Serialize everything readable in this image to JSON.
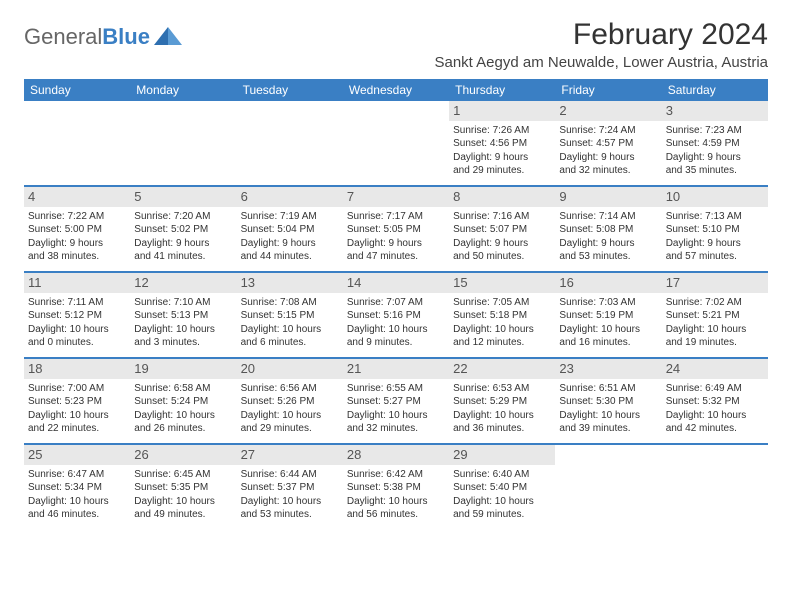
{
  "brand": {
    "general": "General",
    "blue": "Blue"
  },
  "title": "February 2024",
  "location": "Sankt Aegyd am Neuwalde, Lower Austria, Austria",
  "colors": {
    "accent": "#3a7fc4",
    "header_bg": "#3a7fc4",
    "header_text": "#ffffff",
    "daynum_bg": "#e8e8e8",
    "text": "#333333",
    "page_bg": "#ffffff"
  },
  "dayHeaders": [
    "Sunday",
    "Monday",
    "Tuesday",
    "Wednesday",
    "Thursday",
    "Friday",
    "Saturday"
  ],
  "weeks": [
    [
      null,
      null,
      null,
      null,
      {
        "n": "1",
        "sr": "7:26 AM",
        "ss": "4:56 PM",
        "d1": "Daylight: 9 hours",
        "d2": "and 29 minutes."
      },
      {
        "n": "2",
        "sr": "7:24 AM",
        "ss": "4:57 PM",
        "d1": "Daylight: 9 hours",
        "d2": "and 32 minutes."
      },
      {
        "n": "3",
        "sr": "7:23 AM",
        "ss": "4:59 PM",
        "d1": "Daylight: 9 hours",
        "d2": "and 35 minutes."
      }
    ],
    [
      {
        "n": "4",
        "sr": "7:22 AM",
        "ss": "5:00 PM",
        "d1": "Daylight: 9 hours",
        "d2": "and 38 minutes."
      },
      {
        "n": "5",
        "sr": "7:20 AM",
        "ss": "5:02 PM",
        "d1": "Daylight: 9 hours",
        "d2": "and 41 minutes."
      },
      {
        "n": "6",
        "sr": "7:19 AM",
        "ss": "5:04 PM",
        "d1": "Daylight: 9 hours",
        "d2": "and 44 minutes."
      },
      {
        "n": "7",
        "sr": "7:17 AM",
        "ss": "5:05 PM",
        "d1": "Daylight: 9 hours",
        "d2": "and 47 minutes."
      },
      {
        "n": "8",
        "sr": "7:16 AM",
        "ss": "5:07 PM",
        "d1": "Daylight: 9 hours",
        "d2": "and 50 minutes."
      },
      {
        "n": "9",
        "sr": "7:14 AM",
        "ss": "5:08 PM",
        "d1": "Daylight: 9 hours",
        "d2": "and 53 minutes."
      },
      {
        "n": "10",
        "sr": "7:13 AM",
        "ss": "5:10 PM",
        "d1": "Daylight: 9 hours",
        "d2": "and 57 minutes."
      }
    ],
    [
      {
        "n": "11",
        "sr": "7:11 AM",
        "ss": "5:12 PM",
        "d1": "Daylight: 10 hours",
        "d2": "and 0 minutes."
      },
      {
        "n": "12",
        "sr": "7:10 AM",
        "ss": "5:13 PM",
        "d1": "Daylight: 10 hours",
        "d2": "and 3 minutes."
      },
      {
        "n": "13",
        "sr": "7:08 AM",
        "ss": "5:15 PM",
        "d1": "Daylight: 10 hours",
        "d2": "and 6 minutes."
      },
      {
        "n": "14",
        "sr": "7:07 AM",
        "ss": "5:16 PM",
        "d1": "Daylight: 10 hours",
        "d2": "and 9 minutes."
      },
      {
        "n": "15",
        "sr": "7:05 AM",
        "ss": "5:18 PM",
        "d1": "Daylight: 10 hours",
        "d2": "and 12 minutes."
      },
      {
        "n": "16",
        "sr": "7:03 AM",
        "ss": "5:19 PM",
        "d1": "Daylight: 10 hours",
        "d2": "and 16 minutes."
      },
      {
        "n": "17",
        "sr": "7:02 AM",
        "ss": "5:21 PM",
        "d1": "Daylight: 10 hours",
        "d2": "and 19 minutes."
      }
    ],
    [
      {
        "n": "18",
        "sr": "7:00 AM",
        "ss": "5:23 PM",
        "d1": "Daylight: 10 hours",
        "d2": "and 22 minutes."
      },
      {
        "n": "19",
        "sr": "6:58 AM",
        "ss": "5:24 PM",
        "d1": "Daylight: 10 hours",
        "d2": "and 26 minutes."
      },
      {
        "n": "20",
        "sr": "6:56 AM",
        "ss": "5:26 PM",
        "d1": "Daylight: 10 hours",
        "d2": "and 29 minutes."
      },
      {
        "n": "21",
        "sr": "6:55 AM",
        "ss": "5:27 PM",
        "d1": "Daylight: 10 hours",
        "d2": "and 32 minutes."
      },
      {
        "n": "22",
        "sr": "6:53 AM",
        "ss": "5:29 PM",
        "d1": "Daylight: 10 hours",
        "d2": "and 36 minutes."
      },
      {
        "n": "23",
        "sr": "6:51 AM",
        "ss": "5:30 PM",
        "d1": "Daylight: 10 hours",
        "d2": "and 39 minutes."
      },
      {
        "n": "24",
        "sr": "6:49 AM",
        "ss": "5:32 PM",
        "d1": "Daylight: 10 hours",
        "d2": "and 42 minutes."
      }
    ],
    [
      {
        "n": "25",
        "sr": "6:47 AM",
        "ss": "5:34 PM",
        "d1": "Daylight: 10 hours",
        "d2": "and 46 minutes."
      },
      {
        "n": "26",
        "sr": "6:45 AM",
        "ss": "5:35 PM",
        "d1": "Daylight: 10 hours",
        "d2": "and 49 minutes."
      },
      {
        "n": "27",
        "sr": "6:44 AM",
        "ss": "5:37 PM",
        "d1": "Daylight: 10 hours",
        "d2": "and 53 minutes."
      },
      {
        "n": "28",
        "sr": "6:42 AM",
        "ss": "5:38 PM",
        "d1": "Daylight: 10 hours",
        "d2": "and 56 minutes."
      },
      {
        "n": "29",
        "sr": "6:40 AM",
        "ss": "5:40 PM",
        "d1": "Daylight: 10 hours",
        "d2": "and 59 minutes."
      },
      null,
      null
    ]
  ],
  "labels": {
    "sunrise": "Sunrise: ",
    "sunset": "Sunset: "
  }
}
